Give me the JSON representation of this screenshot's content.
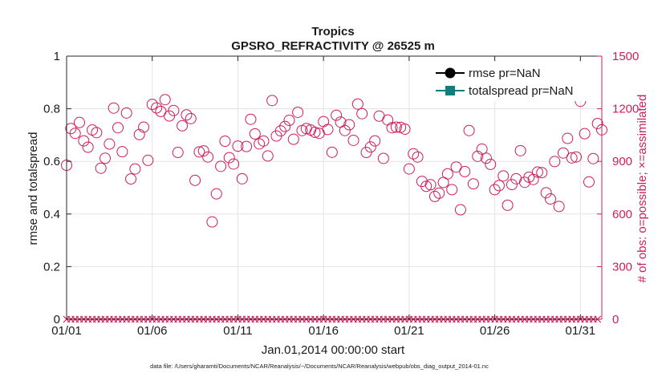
{
  "chart_data": {
    "type": "scatter",
    "title": "Tropics",
    "subtitle": "GPSRO_REFRACTIVITY @ 26525 m",
    "xlabel": "Jan.01,2014 00:00:00 start",
    "ylabel_left": "rmse and totalspread",
    "ylabel_right": "# of obs: o=possible; ×=assimilated",
    "footnote": "data file: /Users/gharamti/Documents/NCAR/Reanalysis/~/Documents/NCAR/Reanalysis/webpub/obs_diag_output_2014-01.nc",
    "x_ticks": [
      {
        "day": 1,
        "label": "01/01"
      },
      {
        "day": 6,
        "label": "01/06"
      },
      {
        "day": 11,
        "label": "01/11"
      },
      {
        "day": 16,
        "label": "01/16"
      },
      {
        "day": 21,
        "label": "01/21"
      },
      {
        "day": 26,
        "label": "01/26"
      },
      {
        "day": 31,
        "label": "01/31"
      }
    ],
    "xlim": [
      1,
      32.25
    ],
    "ylim_left": [
      0,
      1
    ],
    "ylim_right": [
      0,
      1500
    ],
    "left_ticks": [
      "0",
      "0.2",
      "0.4",
      "0.6",
      "0.8",
      "1"
    ],
    "left_tick_values": [
      0,
      0.2,
      0.4,
      0.6,
      0.8,
      1
    ],
    "right_ticks": [
      "0",
      "300",
      "600",
      "900",
      "1200",
      "1500"
    ],
    "right_tick_values": [
      0,
      300,
      600,
      900,
      1200,
      1500
    ],
    "grid": true,
    "legend_position": "top-right",
    "legend": [
      {
        "label": "rmse pr=NaN",
        "color": "#000000",
        "marker": "circle"
      },
      {
        "label": "totalspread pr=NaN",
        "color": "#0d7f7f",
        "marker": "square"
      }
    ],
    "colors": {
      "obs": "#d01c5b",
      "axis_right": "#d01c5b",
      "grid": "#e3e3e3"
    },
    "series": [
      {
        "name": "rmse pr=NaN",
        "values": []
      },
      {
        "name": "totalspread pr=NaN",
        "values": []
      },
      {
        "name": "possible obs",
        "marker": "circle",
        "step_days": 0.25,
        "start_day": 1,
        "values": [
          878,
          1087,
          1060,
          1122,
          1017,
          981,
          1079,
          1064,
          861,
          918,
          999,
          1204,
          1092,
          955,
          1176,
          800,
          857,
          1053,
          1095,
          906,
          1225,
          1205,
          1185,
          1252,
          1159,
          1190,
          951,
          1103,
          1165,
          1144,
          792,
          954,
          960,
          925,
          555,
          715,
          872,
          1015,
          921,
          885,
          987,
          801,
          985,
          1140,
          1057,
          1000,
          1016,
          931,
          1247,
          1045,
          1074,
          1099,
          1134,
          1026,
          1180,
          1076,
          1087,
          1079,
          1066,
          1060,
          1127,
          1082,
          952,
          1163,
          1124,
          1076,
          1109,
          1020,
          1227,
          1172,
          951,
          982,
          1017,
          1158,
          917,
          1136,
          1092,
          1095,
          1094,
          1084,
          857,
          943,
          925,
          786,
          758,
          767,
          700,
          719,
          780,
          829,
          739,
          868,
          624,
          842,
          1076,
          772,
          929,
          970,
          918,
          883,
          739,
          762,
          817,
          650,
          768,
          801,
          961,
          781,
          810,
          797,
          839,
          836,
          721,
          686,
          899,
          643,
          948,
          1031,
          920,
          925,
          1243,
          1058,
          783,
          916,
          1116,
          1080
        ]
      },
      {
        "name": "assimilated obs",
        "marker": "x",
        "step_days": 0.25,
        "start_day": 1,
        "values": [
          0,
          0,
          0,
          0,
          0,
          0,
          0,
          0,
          0,
          0,
          0,
          0,
          0,
          0,
          0,
          0,
          0,
          0,
          0,
          0,
          0,
          0,
          0,
          0,
          0,
          0,
          0,
          0,
          0,
          0,
          0,
          0,
          0,
          0,
          0,
          0,
          0,
          0,
          0,
          0,
          0,
          0,
          0,
          0,
          0,
          0,
          0,
          0,
          0,
          0,
          0,
          0,
          0,
          0,
          0,
          0,
          0,
          0,
          0,
          0,
          0,
          0,
          0,
          0,
          0,
          0,
          0,
          0,
          0,
          0,
          0,
          0,
          0,
          0,
          0,
          0,
          0,
          0,
          0,
          0,
          0,
          0,
          0,
          0,
          0,
          0,
          0,
          0,
          0,
          0,
          0,
          0,
          0,
          0,
          0,
          0,
          0,
          0,
          0,
          0,
          0,
          0,
          0,
          0,
          0,
          0,
          0,
          0,
          0,
          0,
          0,
          0,
          0,
          0,
          0,
          0,
          0,
          0,
          0,
          0,
          0,
          0,
          0,
          0,
          0
        ]
      }
    ]
  }
}
